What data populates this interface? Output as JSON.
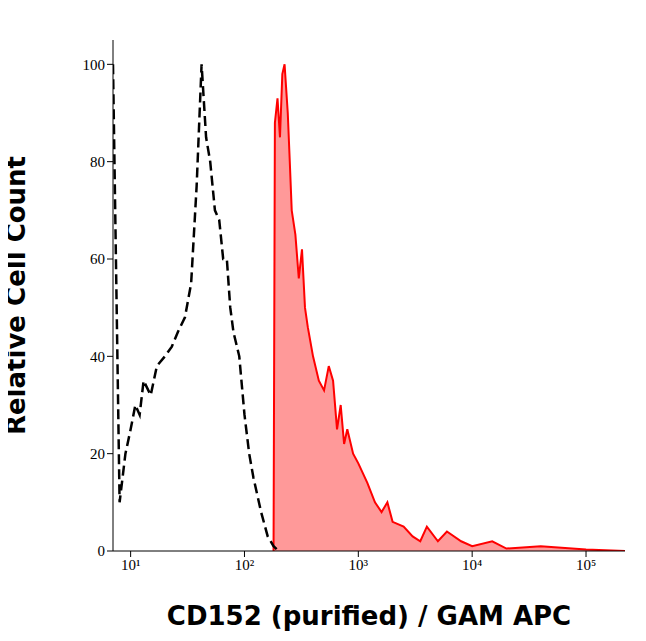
{
  "chart_data": {
    "type": "line",
    "x_label": "CD152 (purified) / GAM APC",
    "y_label": "Relative Cell Count",
    "log": "x",
    "grid": false,
    "xlim": [
      7,
      220000
    ],
    "xticks": [
      {
        "value": 10,
        "label": "10¹"
      },
      {
        "value": 100,
        "label": "10²"
      },
      {
        "value": 1000,
        "label": "10³"
      },
      {
        "value": 10000,
        "label": "10⁴"
      },
      {
        "value": 100000,
        "label": "10⁵"
      }
    ],
    "ylim": [
      0,
      105
    ],
    "yticks": [
      0,
      20,
      40,
      60,
      80,
      100
    ],
    "series": [
      {
        "type": "line",
        "color": "#000000",
        "line_style": "dashed",
        "x": [
          7,
          8,
          9,
          10,
          11,
          12,
          13,
          15,
          17,
          20,
          23,
          26,
          30,
          34,
          38,
          42,
          46,
          50,
          55,
          60,
          65,
          70,
          75,
          80,
          90,
          100,
          110,
          120,
          140,
          160,
          180,
          200
        ],
        "values": [
          100,
          10,
          20,
          25,
          30,
          28,
          35,
          32,
          38,
          40,
          42,
          45,
          48,
          55,
          75,
          100,
          85,
          80,
          70,
          68,
          60,
          60,
          50,
          45,
          40,
          28,
          20,
          15,
          8,
          3,
          1,
          0
        ]
      },
      {
        "type": "area",
        "color": "#ff0000",
        "line_style": "solid",
        "x": [
          180,
          185,
          195,
          205,
          215,
          225,
          240,
          250,
          260,
          280,
          300,
          320,
          340,
          360,
          400,
          450,
          500,
          550,
          600,
          650,
          700,
          750,
          800,
          900,
          1000,
          1200,
          1400,
          1600,
          1800,
          2000,
          2500,
          3000,
          3500,
          4000,
          5000,
          6000,
          8000,
          10000,
          15000,
          20000,
          40000,
          100000,
          220000
        ],
        "values": [
          0,
          88,
          93,
          85,
          98,
          100,
          90,
          80,
          70,
          65,
          56,
          62,
          50,
          46,
          40,
          35,
          33,
          38,
          35,
          25,
          30,
          22,
          25,
          20,
          18,
          14,
          10,
          8,
          10,
          6,
          5,
          3,
          2,
          5,
          2,
          4,
          2,
          1,
          2,
          0.5,
          1,
          0.3,
          0
        ]
      }
    ]
  }
}
